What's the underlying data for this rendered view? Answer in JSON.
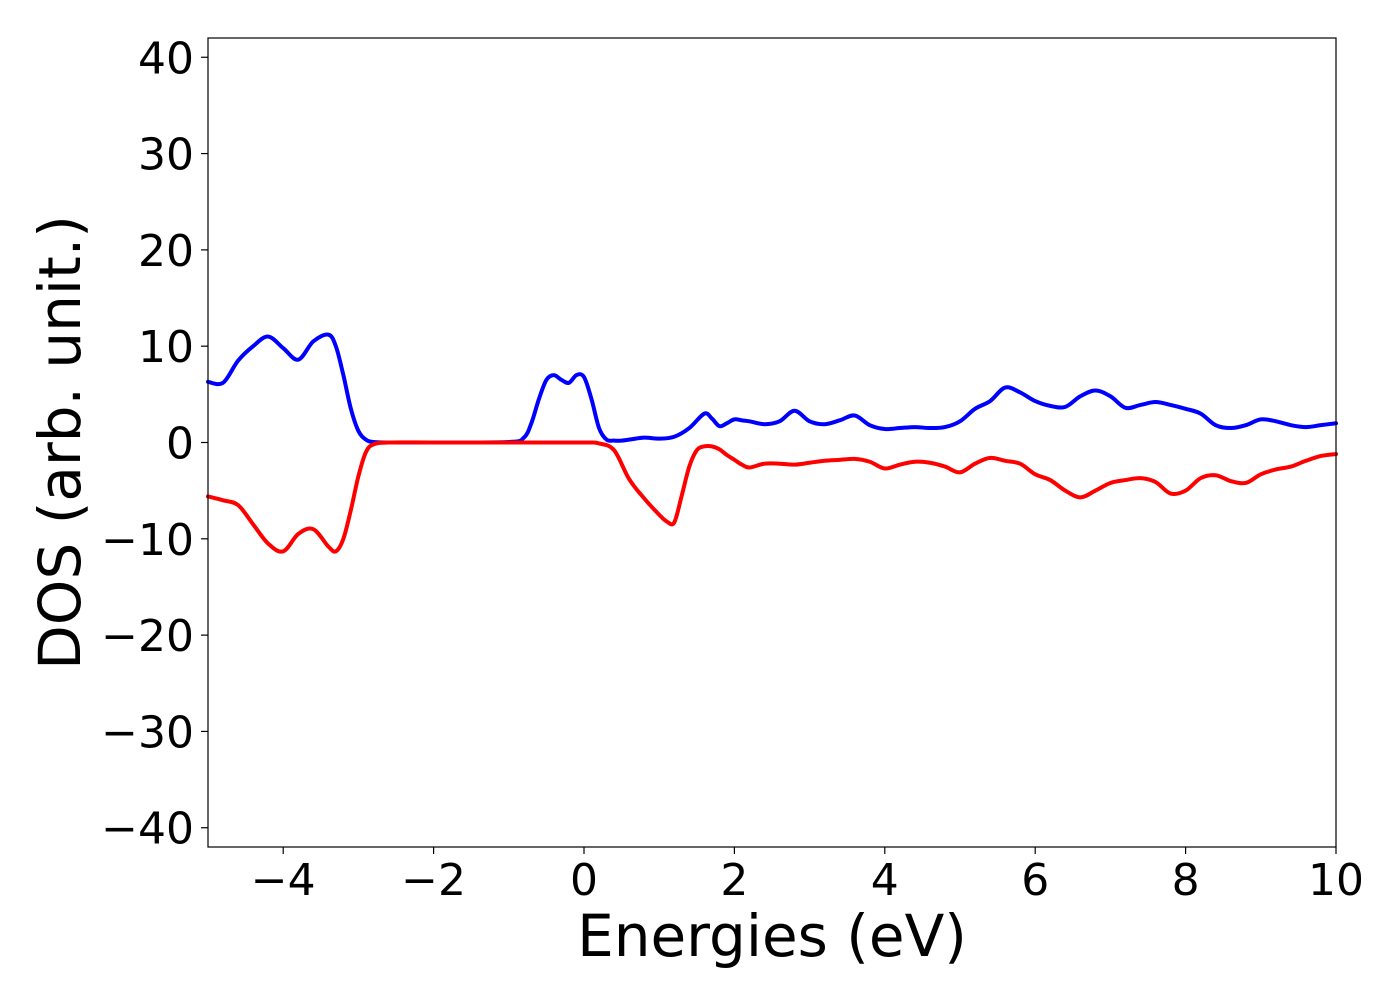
{
  "chart_data": {
    "type": "line",
    "title": "",
    "xlabel": "Energies (eV)",
    "ylabel": "DOS (arb. unit.)",
    "xlim": [
      -5,
      10
    ],
    "ylim": [
      -42,
      42
    ],
    "xticks": [
      -4,
      -2,
      0,
      2,
      4,
      6,
      8,
      10
    ],
    "xtick_labels": [
      "−4",
      "−2",
      "0",
      "2",
      "4",
      "6",
      "8",
      "10"
    ],
    "yticks": [
      40,
      30,
      20,
      10,
      0,
      -10,
      -20,
      -30,
      -40
    ],
    "ytick_labels": [
      "40",
      "30",
      "20",
      "10",
      "0",
      "−10",
      "−20",
      "−30",
      "−40"
    ],
    "grid": false,
    "legend": false,
    "series": [
      {
        "color": "#0000ff",
        "x": [
          -5.0,
          -4.8,
          -4.6,
          -4.4,
          -4.2,
          -4.0,
          -3.8,
          -3.6,
          -3.4,
          -3.3,
          -3.2,
          -3.1,
          -3.0,
          -2.9,
          -2.8,
          -2.6,
          -2.0,
          -1.0,
          -0.8,
          -0.7,
          -0.6,
          -0.5,
          -0.4,
          -0.3,
          -0.2,
          -0.1,
          0.0,
          0.1,
          0.2,
          0.3,
          0.4,
          0.5,
          0.6,
          0.8,
          1.0,
          1.2,
          1.4,
          1.6,
          1.7,
          1.8,
          1.9,
          2.0,
          2.1,
          2.2,
          2.4,
          2.6,
          2.8,
          3.0,
          3.2,
          3.4,
          3.6,
          3.8,
          4.0,
          4.2,
          4.4,
          4.6,
          4.8,
          5.0,
          5.2,
          5.4,
          5.6,
          5.8,
          6.0,
          6.2,
          6.4,
          6.6,
          6.8,
          7.0,
          7.2,
          7.4,
          7.6,
          7.8,
          8.0,
          8.2,
          8.4,
          8.6,
          8.8,
          9.0,
          9.2,
          9.4,
          9.6,
          9.8,
          10.0
        ],
        "y": [
          6.3,
          6.2,
          8.5,
          10.0,
          11.0,
          9.8,
          8.6,
          10.5,
          11.2,
          10.0,
          7.0,
          3.5,
          1.2,
          0.3,
          0.05,
          0.0,
          0.0,
          0.05,
          0.5,
          2.0,
          4.5,
          6.5,
          7.0,
          6.5,
          6.2,
          7.0,
          6.8,
          4.5,
          1.5,
          0.3,
          0.2,
          0.2,
          0.3,
          0.5,
          0.4,
          0.6,
          1.5,
          3.0,
          2.5,
          1.7,
          2.0,
          2.4,
          2.3,
          2.2,
          1.9,
          2.2,
          3.3,
          2.2,
          1.9,
          2.3,
          2.8,
          1.8,
          1.4,
          1.5,
          1.6,
          1.5,
          1.6,
          2.2,
          3.5,
          4.3,
          5.7,
          5.2,
          4.3,
          3.8,
          3.7,
          4.8,
          5.4,
          4.8,
          3.6,
          3.9,
          4.2,
          3.9,
          3.5,
          3.0,
          1.8,
          1.5,
          1.8,
          2.4,
          2.2,
          1.8,
          1.6,
          1.8,
          2.0
        ]
      },
      {
        "color": "#ff0000",
        "x": [
          -5.0,
          -4.8,
          -4.6,
          -4.4,
          -4.2,
          -4.0,
          -3.8,
          -3.6,
          -3.4,
          -3.3,
          -3.2,
          -3.1,
          -3.0,
          -2.9,
          -2.8,
          -2.6,
          -2.0,
          -1.0,
          0.0,
          0.2,
          0.4,
          0.6,
          0.8,
          1.0,
          1.1,
          1.2,
          1.3,
          1.4,
          1.5,
          1.6,
          1.7,
          1.8,
          1.9,
          2.0,
          2.1,
          2.2,
          2.4,
          2.6,
          2.8,
          3.0,
          3.2,
          3.4,
          3.6,
          3.8,
          4.0,
          4.2,
          4.4,
          4.6,
          4.8,
          5.0,
          5.2,
          5.4,
          5.6,
          5.8,
          6.0,
          6.2,
          6.4,
          6.6,
          6.8,
          7.0,
          7.2,
          7.4,
          7.6,
          7.8,
          8.0,
          8.2,
          8.4,
          8.6,
          8.8,
          9.0,
          9.2,
          9.4,
          9.6,
          9.8,
          10.0
        ],
        "y": [
          -5.6,
          -6.0,
          -6.5,
          -8.5,
          -10.5,
          -11.3,
          -9.5,
          -9.0,
          -10.8,
          -11.3,
          -10.0,
          -7.0,
          -3.5,
          -1.0,
          -0.2,
          0.0,
          0.0,
          0.0,
          0.0,
          -0.1,
          -0.8,
          -3.8,
          -5.8,
          -7.5,
          -8.2,
          -8.3,
          -5.5,
          -2.5,
          -0.8,
          -0.4,
          -0.4,
          -0.7,
          -1.3,
          -1.8,
          -2.3,
          -2.6,
          -2.2,
          -2.2,
          -2.3,
          -2.1,
          -1.9,
          -1.8,
          -1.7,
          -2.0,
          -2.7,
          -2.3,
          -2.0,
          -2.1,
          -2.5,
          -3.1,
          -2.2,
          -1.6,
          -1.9,
          -2.2,
          -3.3,
          -3.9,
          -5.0,
          -5.7,
          -5.0,
          -4.2,
          -3.9,
          -3.7,
          -4.1,
          -5.3,
          -5.0,
          -3.7,
          -3.4,
          -4.0,
          -4.2,
          -3.3,
          -2.8,
          -2.5,
          -1.9,
          -1.4,
          -1.2
        ]
      }
    ]
  }
}
